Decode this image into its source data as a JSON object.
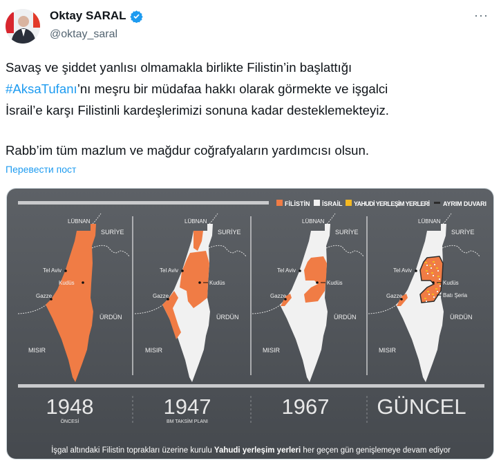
{
  "author": {
    "name": "Oktay SARAL",
    "handle": "@oktay_saral",
    "verified": true,
    "verified_color": "#1d9bf0"
  },
  "menu_icon": "more-horizontal-icon",
  "tweet": {
    "line1": "Savaş ve şiddet yanlısı olmamakla birlikte Filistin’in başlattığı",
    "hashtag": "#AksaTufanı",
    "line2_rest": "’nı meşru bir müdafaa hakkı olarak görmekte ve işgalci",
    "line3": "İsrail’e karşı Filistinli kardeşlerimizi sonuna kadar desteklemekteyiz.",
    "line4": "Rabb’im tüm mazlum ve mağdur coğrafyaların yardımcısı olsun."
  },
  "translate_label": "Перевести пост",
  "infographic": {
    "colors": {
      "palestine": "#f07c45",
      "israel": "#f1f1f1",
      "settlements": "#f5b921",
      "wall": "#2b2b2b",
      "background": "#54585d"
    },
    "legend": [
      {
        "label": "FİLİSTİN",
        "color": "#f07c45"
      },
      {
        "label": "İSRAİL",
        "color": "#f1f1f1"
      },
      {
        "label": "YAHUDİ YERLEŞİM YERLERİ",
        "color": "#f5b921"
      },
      {
        "label": "AYRIM DUVARI",
        "color": "#2b2b2b"
      }
    ],
    "labels": {
      "lubnan": "LÜBNAN",
      "suriye": "SURİYE",
      "urdun": "ÜRDÜN",
      "misir": "MISIR",
      "telaviv": "Tel Aviv",
      "kudus": "Kudüs",
      "gazze": "Gazze",
      "batiseria": "Batı Şeria"
    },
    "panels": [
      {
        "year": "1948",
        "subtitle": "ÖNCESİ"
      },
      {
        "year": "1947",
        "subtitle": "BM TAKSİM PLANI"
      },
      {
        "year": "1967",
        "subtitle": ""
      },
      {
        "year": "GÜNCEL",
        "subtitle": ""
      }
    ],
    "caption_pre": "İşgal altındaki Filistin toprakları üzerine kurulu ",
    "caption_bold": "Yahudi yerleşim yerleri",
    "caption_post": " her geçen gün genişlemeye devam ediyor"
  }
}
